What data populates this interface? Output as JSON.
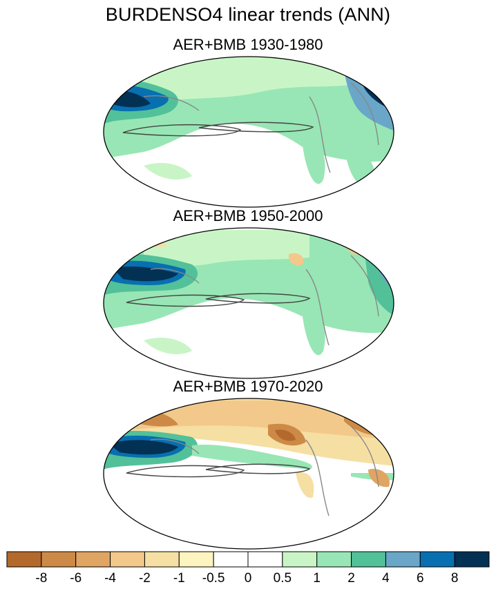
{
  "title": "BURDENSO4 linear trends (ANN)",
  "panels": [
    {
      "title": "AER+BMB 1930-1980"
    },
    {
      "title": "AER+BMB 1950-2000"
    },
    {
      "title": "AER+BMB 1970-2020"
    }
  ],
  "colorbar": {
    "colors": [
      "#b3692b",
      "#cd8a46",
      "#e0a562",
      "#f2c98b",
      "#f6dfa3",
      "#fdf4c0",
      "#ffffff",
      "#ffffff",
      "#c9f5c6",
      "#98e6b5",
      "#52c199",
      "#6aa6c8",
      "#086fb0",
      "#033154"
    ],
    "labels": [
      "-8",
      "-6",
      "-4",
      "-2",
      "-1",
      "-0.5",
      "0",
      "0.5",
      "1",
      "2",
      "4",
      "6",
      "8"
    ]
  }
}
